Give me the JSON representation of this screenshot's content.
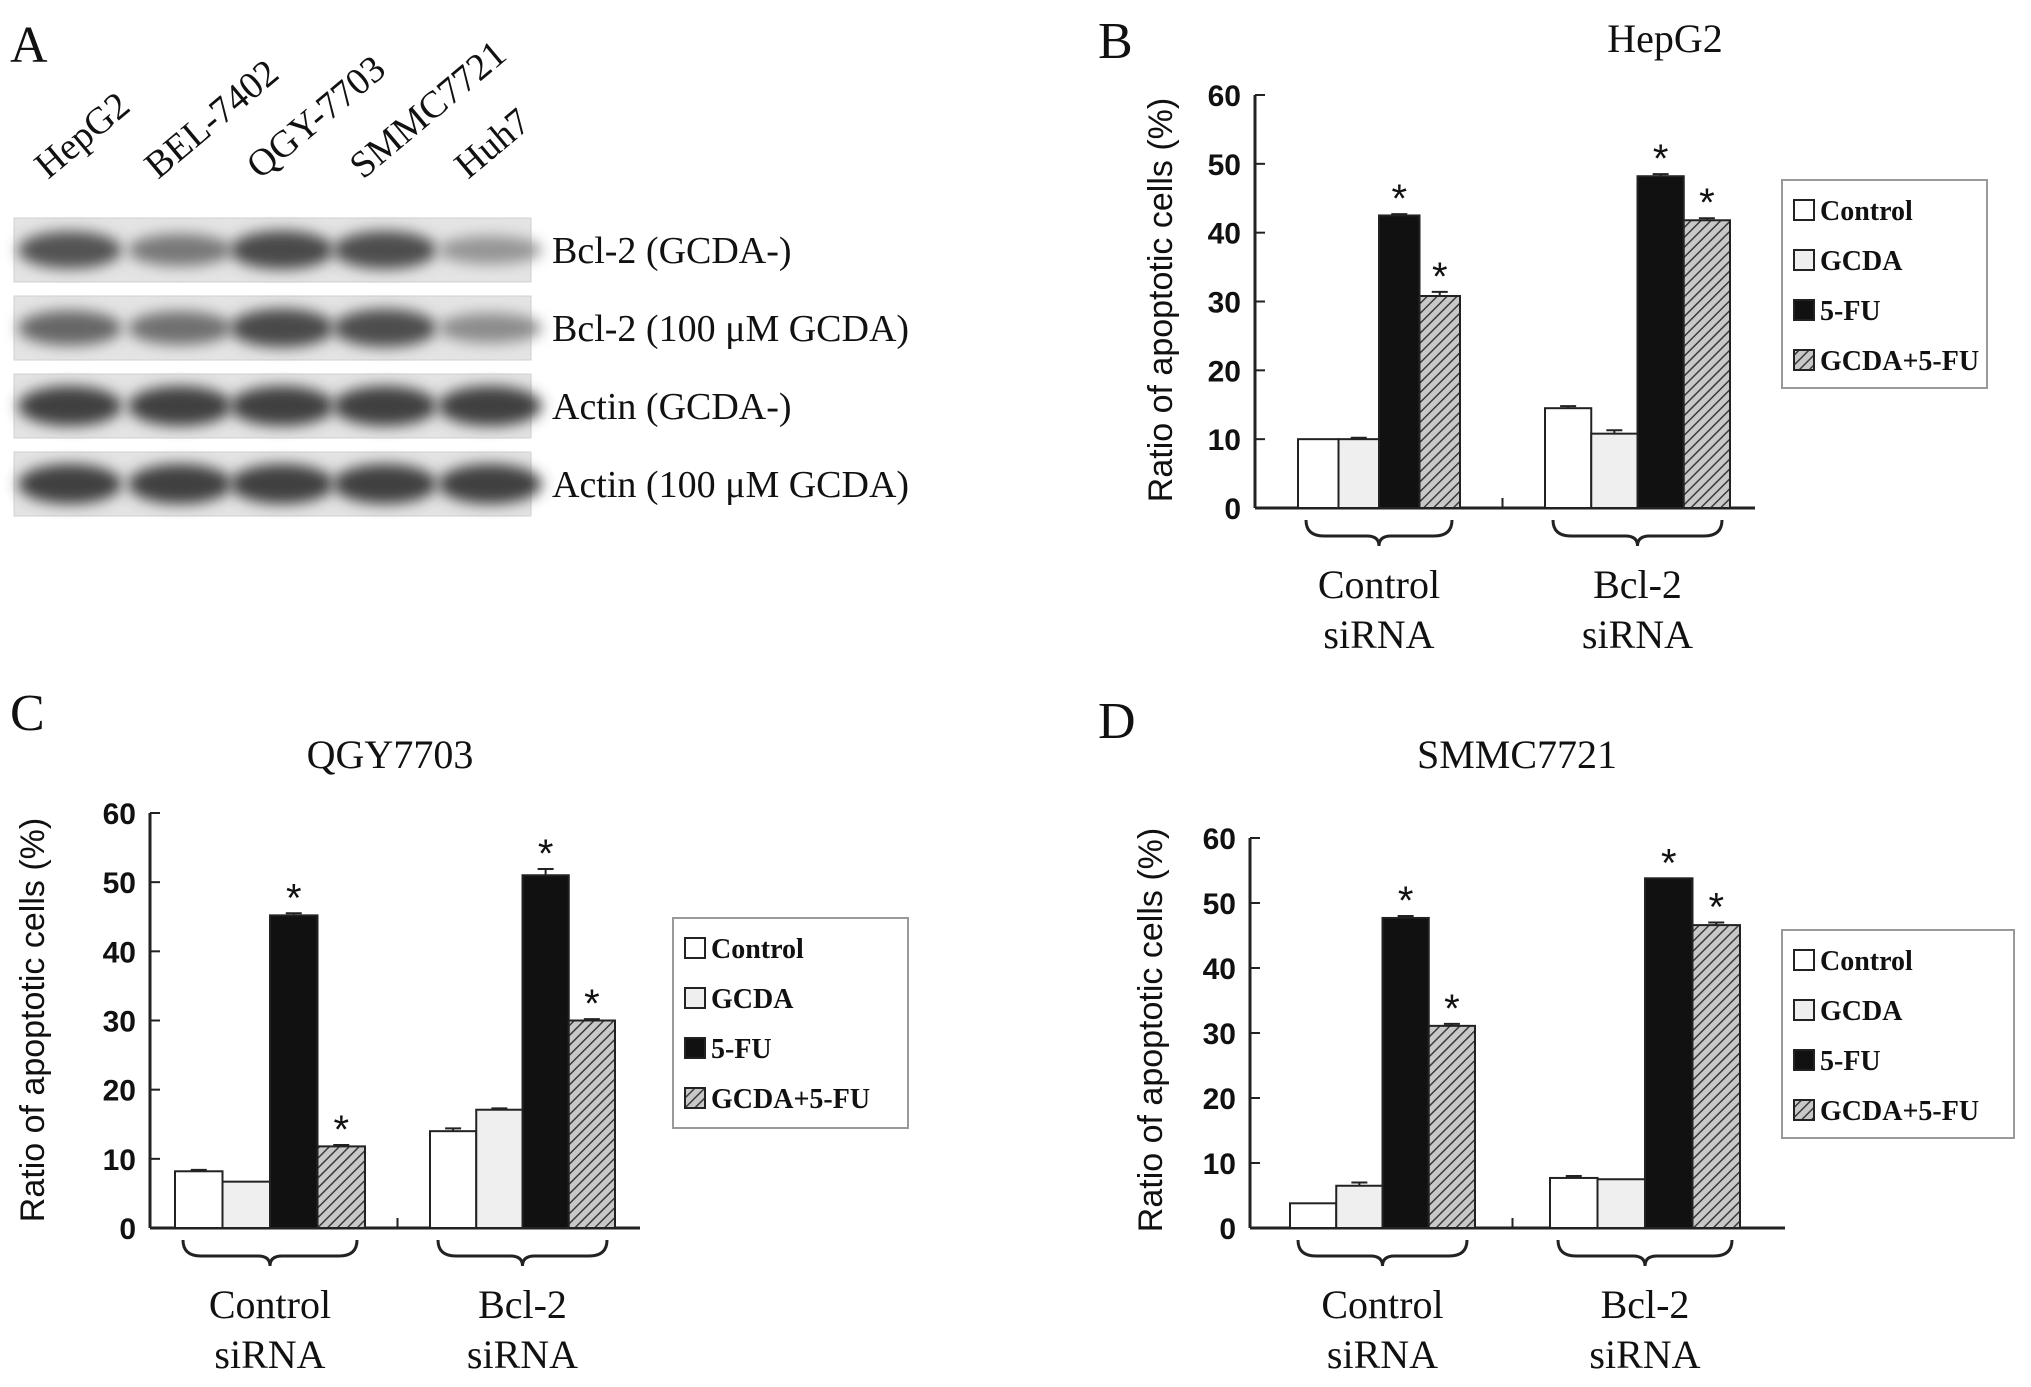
{
  "blot": {
    "letter": "A",
    "lanes": [
      "HepG2",
      "BEL-7402",
      "QGY-7703",
      "SMMC7721",
      "Huh7"
    ],
    "rows": [
      {
        "label": "Bcl-2 (GCDA-)",
        "intensity": [
          0.75,
          0.55,
          0.8,
          0.78,
          0.4
        ]
      },
      {
        "label": "Bcl-2 (100 μM GCDA)",
        "intensity": [
          0.65,
          0.6,
          0.8,
          0.78,
          0.45
        ]
      },
      {
        "label": "Actin (GCDA-)",
        "intensity": [
          0.85,
          0.85,
          0.85,
          0.85,
          0.85
        ]
      },
      {
        "label": "Actin (100 μM GCDA)",
        "intensity": [
          0.85,
          0.85,
          0.85,
          0.85,
          0.85
        ]
      }
    ]
  },
  "chart_data": [
    {
      "letter": "B",
      "type": "bar",
      "title": "HepG2",
      "ylabel": "Ratio of apoptotic cells (%)",
      "ylim": [
        0,
        60
      ],
      "yticks": [
        "0",
        "10",
        "20",
        "30",
        "40",
        "50",
        "60"
      ],
      "groups": [
        [
          "Control",
          "siRNA"
        ],
        [
          "Bcl-2",
          "siRNA"
        ]
      ],
      "legend_position": "right",
      "series": [
        {
          "name": "Control",
          "values": [
            10,
            14.5
          ],
          "errors": [
            0,
            0.3
          ],
          "stars": [
            "",
            ""
          ]
        },
        {
          "name": "GCDA",
          "values": [
            10,
            10.8
          ],
          "errors": [
            0.2,
            0.5
          ],
          "stars": [
            "",
            ""
          ]
        },
        {
          "name": "5-FU",
          "values": [
            42.5,
            48.2
          ],
          "errors": [
            0.2,
            0.3
          ],
          "stars": [
            "*",
            "*"
          ]
        },
        {
          "name": "GCDA+5-FU",
          "values": [
            30.8,
            41.8
          ],
          "errors": [
            0.6,
            0.3
          ],
          "stars": [
            "*",
            "*"
          ]
        }
      ]
    },
    {
      "letter": "C",
      "type": "bar",
      "title": "QGY7703",
      "ylabel": "Ratio of apoptotic cells (%)",
      "ylim": [
        0,
        60
      ],
      "yticks": [
        "0",
        "10",
        "20",
        "30",
        "40",
        "50",
        "60"
      ],
      "groups": [
        [
          "Control",
          "siRNA"
        ],
        [
          "Bcl-2",
          "siRNA"
        ]
      ],
      "legend_position": "right",
      "series": [
        {
          "name": "Control",
          "values": [
            8.2,
            14
          ],
          "errors": [
            0.2,
            0.4
          ],
          "stars": [
            "",
            ""
          ]
        },
        {
          "name": "GCDA",
          "values": [
            6.7,
            17.1
          ],
          "errors": [
            0,
            0.2
          ],
          "stars": [
            "",
            ""
          ]
        },
        {
          "name": "5-FU",
          "values": [
            45.2,
            51
          ],
          "errors": [
            0.3,
            0.9
          ],
          "stars": [
            "*",
            "*"
          ]
        },
        {
          "name": "GCDA+5-FU",
          "values": [
            11.8,
            30
          ],
          "errors": [
            0.2,
            0.2
          ],
          "stars": [
            "*",
            "*"
          ]
        }
      ]
    },
    {
      "letter": "D",
      "type": "bar",
      "title": "SMMC7721",
      "ylabel": "Ratio of apoptotic cells (%)",
      "ylim": [
        0,
        60
      ],
      "yticks": [
        "0",
        "10",
        "20",
        "30",
        "40",
        "50",
        "60"
      ],
      "groups": [
        [
          "Control",
          "siRNA"
        ],
        [
          "Bcl-2",
          "siRNA"
        ]
      ],
      "legend_position": "right",
      "series": [
        {
          "name": "Control",
          "values": [
            3.8,
            7.7
          ],
          "errors": [
            0,
            0.3
          ],
          "stars": [
            "",
            ""
          ]
        },
        {
          "name": "GCDA",
          "values": [
            6.5,
            7.5
          ],
          "errors": [
            0.5,
            0
          ],
          "stars": [
            "",
            ""
          ]
        },
        {
          "name": "5-FU",
          "values": [
            47.7,
            53.8
          ],
          "errors": [
            0.3,
            0
          ],
          "stars": [
            "*",
            "*"
          ]
        },
        {
          "name": "GCDA+5-FU",
          "values": [
            31.1,
            46.6
          ],
          "errors": [
            0.3,
            0.4
          ],
          "stars": [
            "*",
            "*"
          ]
        }
      ]
    }
  ]
}
